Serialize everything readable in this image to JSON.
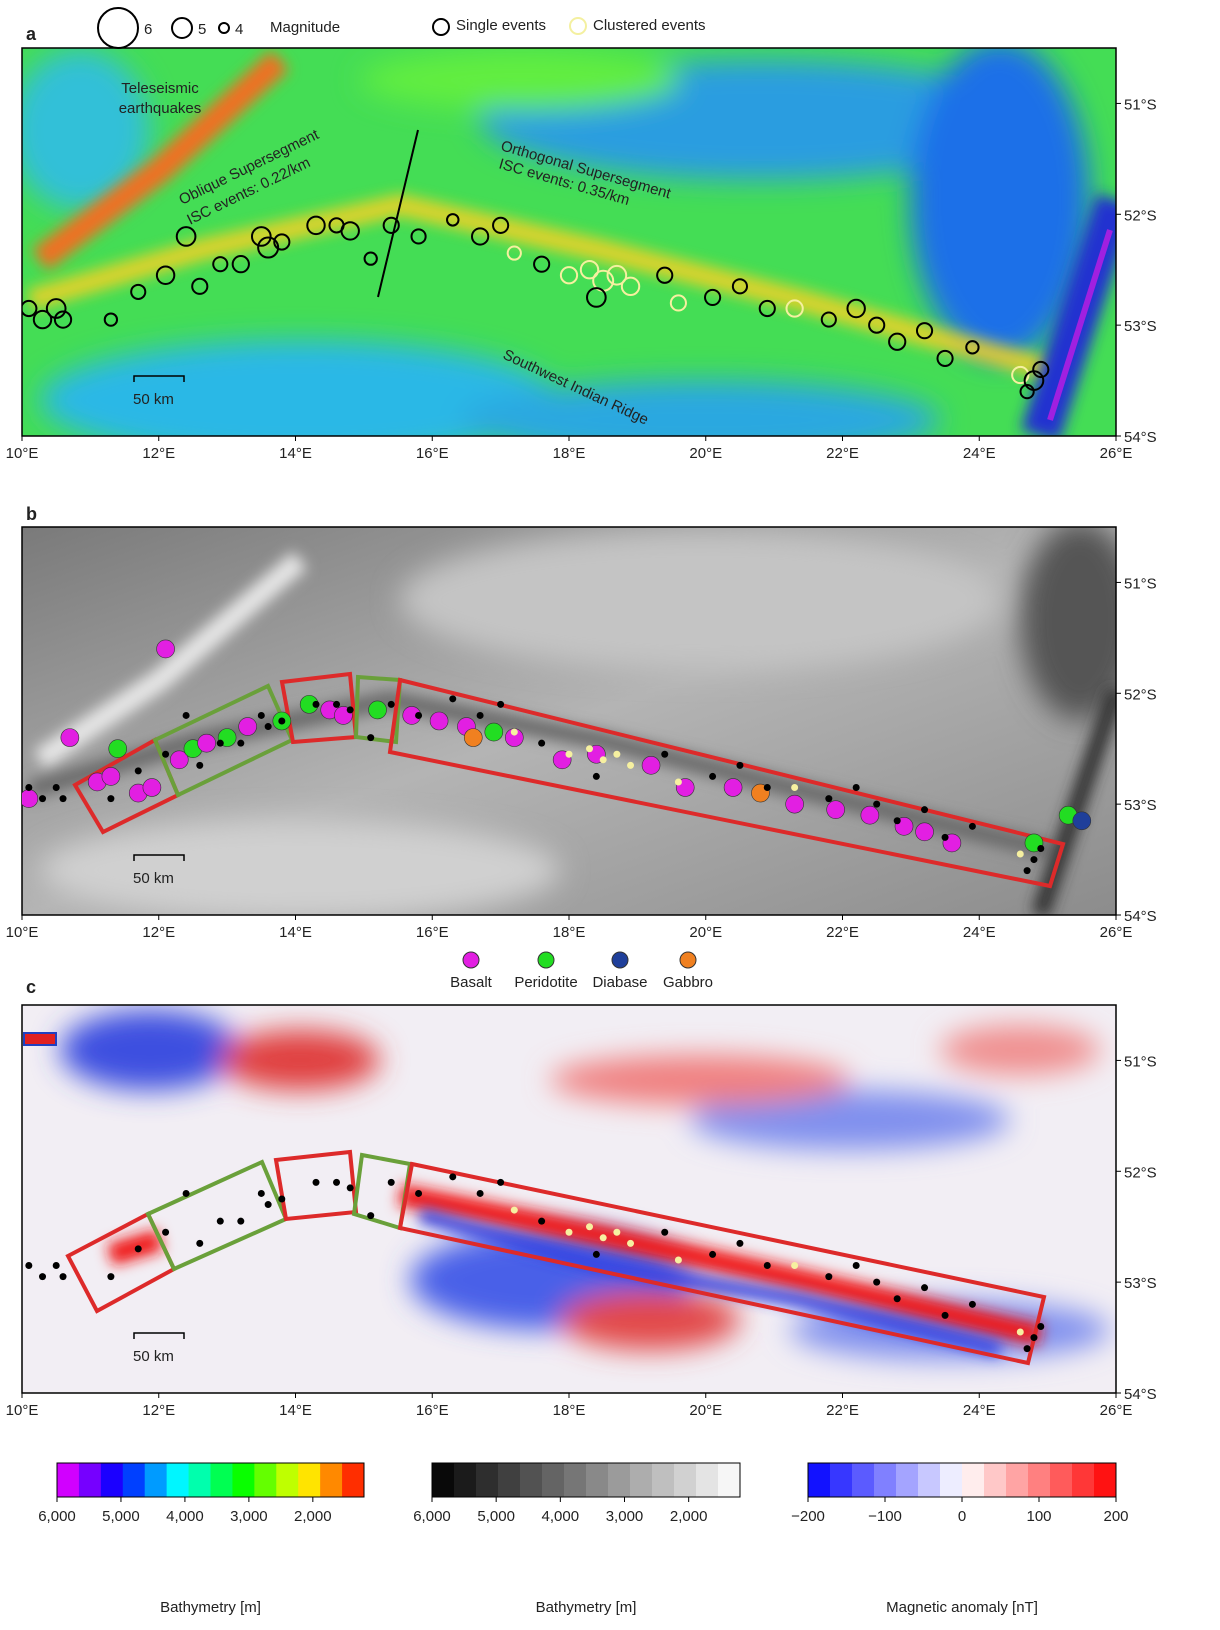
{
  "panels": [
    {
      "label": "a"
    },
    {
      "label": "b"
    },
    {
      "label": "c"
    }
  ],
  "magnitude_legend": {
    "magnitudes": [
      6,
      5,
      4
    ],
    "title": "Magnitude"
  },
  "event_legend": {
    "single": "Single events",
    "clustered": "Clustered events"
  },
  "annotations": {
    "teleseismic": [
      "Teleseismic",
      "earthquakes"
    ],
    "oblique": [
      "Oblique Supersegment",
      "ISC events: 0.22/km"
    ],
    "orthogonal": [
      "Orthogonal Supersegment",
      "ISC events: 0.35/km"
    ],
    "ridge": "Southwest Indian Ridge"
  },
  "scale_bar": "50 km",
  "lon_ticks": [
    {
      "value": 10,
      "label": "10°E"
    },
    {
      "value": 12,
      "label": "12°E"
    },
    {
      "value": 14,
      "label": "14°E"
    },
    {
      "value": 16,
      "label": "16°E"
    },
    {
      "value": 18,
      "label": "18°E"
    },
    {
      "value": 20,
      "label": "20°E"
    },
    {
      "value": 22,
      "label": "22°E"
    },
    {
      "value": 24,
      "label": "24°E"
    },
    {
      "value": 26,
      "label": "26°E"
    }
  ],
  "lat_ticks": [
    {
      "value": 51,
      "label": "51°S"
    },
    {
      "value": 52,
      "label": "52°S"
    },
    {
      "value": 53,
      "label": "53°S"
    },
    {
      "value": 54,
      "label": "54°S"
    }
  ],
  "lon_range": [
    10,
    26
  ],
  "lat_range": [
    50.5,
    54
  ],
  "rock_types": [
    {
      "name": "Basalt",
      "color": "#e21fe2"
    },
    {
      "name": "Peridotite",
      "color": "#22dd22"
    },
    {
      "name": "Diabase",
      "color": "#1f3f9a"
    },
    {
      "name": "Gabbro",
      "color": "#f08020"
    }
  ],
  "events": [
    {
      "lon": 10.1,
      "lat": 52.85,
      "mag": 4.6,
      "clustered": false
    },
    {
      "lon": 10.3,
      "lat": 52.95,
      "mag": 4.8,
      "clustered": false
    },
    {
      "lon": 10.5,
      "lat": 52.85,
      "mag": 4.9,
      "clustered": false
    },
    {
      "lon": 10.6,
      "lat": 52.95,
      "mag": 4.7,
      "clustered": false
    },
    {
      "lon": 11.3,
      "lat": 52.95,
      "mag": 4.3,
      "clustered": false
    },
    {
      "lon": 11.7,
      "lat": 52.7,
      "mag": 4.5,
      "clustered": false
    },
    {
      "lon": 12.1,
      "lat": 52.55,
      "mag": 4.8,
      "clustered": false
    },
    {
      "lon": 12.4,
      "lat": 52.2,
      "mag": 4.9,
      "clustered": false
    },
    {
      "lon": 12.6,
      "lat": 52.65,
      "mag": 4.6,
      "clustered": false
    },
    {
      "lon": 12.9,
      "lat": 52.45,
      "mag": 4.5,
      "clustered": false
    },
    {
      "lon": 13.2,
      "lat": 52.45,
      "mag": 4.7,
      "clustered": false
    },
    {
      "lon": 13.5,
      "lat": 52.2,
      "mag": 4.9,
      "clustered": false
    },
    {
      "lon": 13.6,
      "lat": 52.3,
      "mag": 5.0,
      "clustered": false
    },
    {
      "lon": 13.8,
      "lat": 52.25,
      "mag": 4.6,
      "clustered": false
    },
    {
      "lon": 14.3,
      "lat": 52.1,
      "mag": 4.8,
      "clustered": false
    },
    {
      "lon": 14.6,
      "lat": 52.1,
      "mag": 4.5,
      "clustered": false
    },
    {
      "lon": 14.8,
      "lat": 52.15,
      "mag": 4.8,
      "clustered": false
    },
    {
      "lon": 15.1,
      "lat": 52.4,
      "mag": 4.3,
      "clustered": false
    },
    {
      "lon": 15.4,
      "lat": 52.1,
      "mag": 4.6,
      "clustered": false
    },
    {
      "lon": 15.8,
      "lat": 52.2,
      "mag": 4.5,
      "clustered": false
    },
    {
      "lon": 16.3,
      "lat": 52.05,
      "mag": 4.2,
      "clustered": false
    },
    {
      "lon": 16.7,
      "lat": 52.2,
      "mag": 4.7,
      "clustered": false
    },
    {
      "lon": 17.0,
      "lat": 52.1,
      "mag": 4.6,
      "clustered": false
    },
    {
      "lon": 17.2,
      "lat": 52.35,
      "mag": 4.4,
      "clustered": true
    },
    {
      "lon": 17.6,
      "lat": 52.45,
      "mag": 4.6,
      "clustered": false
    },
    {
      "lon": 18.0,
      "lat": 52.55,
      "mag": 4.7,
      "clustered": true
    },
    {
      "lon": 18.3,
      "lat": 52.5,
      "mag": 4.8,
      "clustered": true
    },
    {
      "lon": 18.5,
      "lat": 52.6,
      "mag": 5.0,
      "clustered": true
    },
    {
      "lon": 18.7,
      "lat": 52.55,
      "mag": 4.9,
      "clustered": true
    },
    {
      "lon": 18.9,
      "lat": 52.65,
      "mag": 4.8,
      "clustered": true
    },
    {
      "lon": 18.4,
      "lat": 52.75,
      "mag": 4.9,
      "clustered": false
    },
    {
      "lon": 19.4,
      "lat": 52.55,
      "mag": 4.6,
      "clustered": false
    },
    {
      "lon": 19.6,
      "lat": 52.8,
      "mag": 4.6,
      "clustered": true
    },
    {
      "lon": 20.1,
      "lat": 52.75,
      "mag": 4.6,
      "clustered": false
    },
    {
      "lon": 20.5,
      "lat": 52.65,
      "mag": 4.5,
      "clustered": false
    },
    {
      "lon": 20.9,
      "lat": 52.85,
      "mag": 4.6,
      "clustered": false
    },
    {
      "lon": 21.3,
      "lat": 52.85,
      "mag": 4.7,
      "clustered": true
    },
    {
      "lon": 21.8,
      "lat": 52.95,
      "mag": 4.5,
      "clustered": false
    },
    {
      "lon": 22.2,
      "lat": 52.85,
      "mag": 4.8,
      "clustered": false
    },
    {
      "lon": 22.5,
      "lat": 53.0,
      "mag": 4.6,
      "clustered": false
    },
    {
      "lon": 22.8,
      "lat": 53.15,
      "mag": 4.7,
      "clustered": false
    },
    {
      "lon": 23.2,
      "lat": 53.05,
      "mag": 4.6,
      "clustered": false
    },
    {
      "lon": 23.5,
      "lat": 53.3,
      "mag": 4.6,
      "clustered": false
    },
    {
      "lon": 23.9,
      "lat": 53.2,
      "mag": 4.3,
      "clustered": false
    },
    {
      "lon": 24.6,
      "lat": 53.45,
      "mag": 4.7,
      "clustered": true
    },
    {
      "lon": 24.8,
      "lat": 53.5,
      "mag": 4.9,
      "clustered": false
    },
    {
      "lon": 24.9,
      "lat": 53.4,
      "mag": 4.6,
      "clustered": false
    },
    {
      "lon": 24.7,
      "lat": 53.6,
      "mag": 4.4,
      "clustered": false
    }
  ],
  "samples": [
    {
      "lon": 10.1,
      "lat": 52.95,
      "rock": 0
    },
    {
      "lon": 10.7,
      "lat": 52.4,
      "rock": 0
    },
    {
      "lon": 11.1,
      "lat": 52.8,
      "rock": 0
    },
    {
      "lon": 11.3,
      "lat": 52.75,
      "rock": 0
    },
    {
      "lon": 11.4,
      "lat": 52.5,
      "rock": 1
    },
    {
      "lon": 11.7,
      "lat": 52.9,
      "rock": 0
    },
    {
      "lon": 11.9,
      "lat": 52.85,
      "rock": 0
    },
    {
      "lon": 12.1,
      "lat": 51.6,
      "rock": 0
    },
    {
      "lon": 12.3,
      "lat": 52.6,
      "rock": 0
    },
    {
      "lon": 12.5,
      "lat": 52.5,
      "rock": 1
    },
    {
      "lon": 12.7,
      "lat": 52.45,
      "rock": 0
    },
    {
      "lon": 13.0,
      "lat": 52.4,
      "rock": 1
    },
    {
      "lon": 13.3,
      "lat": 52.3,
      "rock": 0
    },
    {
      "lon": 13.8,
      "lat": 52.25,
      "rock": 1
    },
    {
      "lon": 14.2,
      "lat": 52.1,
      "rock": 1
    },
    {
      "lon": 14.5,
      "lat": 52.15,
      "rock": 0
    },
    {
      "lon": 14.7,
      "lat": 52.2,
      "rock": 0
    },
    {
      "lon": 15.2,
      "lat": 52.15,
      "rock": 1
    },
    {
      "lon": 15.7,
      "lat": 52.2,
      "rock": 0
    },
    {
      "lon": 16.1,
      "lat": 52.25,
      "rock": 0
    },
    {
      "lon": 16.5,
      "lat": 52.3,
      "rock": 0
    },
    {
      "lon": 16.6,
      "lat": 52.4,
      "rock": 3
    },
    {
      "lon": 16.9,
      "lat": 52.35,
      "rock": 1
    },
    {
      "lon": 17.2,
      "lat": 52.4,
      "rock": 0
    },
    {
      "lon": 17.9,
      "lat": 52.6,
      "rock": 0
    },
    {
      "lon": 18.4,
      "lat": 52.55,
      "rock": 0
    },
    {
      "lon": 19.2,
      "lat": 52.65,
      "rock": 0
    },
    {
      "lon": 19.7,
      "lat": 52.85,
      "rock": 0
    },
    {
      "lon": 20.4,
      "lat": 52.85,
      "rock": 0
    },
    {
      "lon": 20.8,
      "lat": 52.9,
      "rock": 3
    },
    {
      "lon": 21.3,
      "lat": 53.0,
      "rock": 0
    },
    {
      "lon": 21.9,
      "lat": 53.05,
      "rock": 0
    },
    {
      "lon": 22.4,
      "lat": 53.1,
      "rock": 0
    },
    {
      "lon": 22.9,
      "lat": 53.2,
      "rock": 0
    },
    {
      "lon": 23.2,
      "lat": 53.25,
      "rock": 0
    },
    {
      "lon": 23.6,
      "lat": 53.35,
      "rock": 0
    },
    {
      "lon": 24.8,
      "lat": 53.35,
      "rock": 1
    },
    {
      "lon": 25.3,
      "lat": 53.1,
      "rock": 1
    },
    {
      "lon": 25.5,
      "lat": 53.15,
      "rock": 2
    }
  ],
  "colorbars": [
    {
      "title": "Bathymetry [m]",
      "range": [
        6000,
        1200
      ],
      "colors": [
        "#ff00ff",
        "#0000ff",
        "#00ffff",
        "#00ff00",
        "#ffff00",
        "#ff0000"
      ],
      "ticks": [
        {
          "value": 6000,
          "label": "6,000"
        },
        {
          "value": 5000,
          "label": "5,000"
        },
        {
          "value": 4000,
          "label": "4,000"
        },
        {
          "value": 3000,
          "label": "3,000"
        },
        {
          "value": 2000,
          "label": "2,000"
        }
      ]
    },
    {
      "title": "Bathymetry [m]",
      "range": [
        6000,
        1200
      ],
      "colors": [
        "#000000",
        "#ffffff"
      ],
      "ticks": [
        {
          "value": 6000,
          "label": "6,000"
        },
        {
          "value": 5000,
          "label": "5,000"
        },
        {
          "value": 4000,
          "label": "4,000"
        },
        {
          "value": 3000,
          "label": "3,000"
        },
        {
          "value": 2000,
          "label": "2,000"
        }
      ]
    },
    {
      "title": "Magnetic anomaly [nT]",
      "range": [
        -200,
        200
      ],
      "colors": [
        "#0000ff",
        "#ffffff",
        "#ff0000"
      ],
      "ticks": [
        {
          "value": -200,
          "label": "−200"
        },
        {
          "value": -100,
          "label": "−100"
        },
        {
          "value": 0,
          "label": "0"
        },
        {
          "value": 100,
          "label": "100"
        },
        {
          "value": 200,
          "label": "200"
        }
      ]
    }
  ]
}
